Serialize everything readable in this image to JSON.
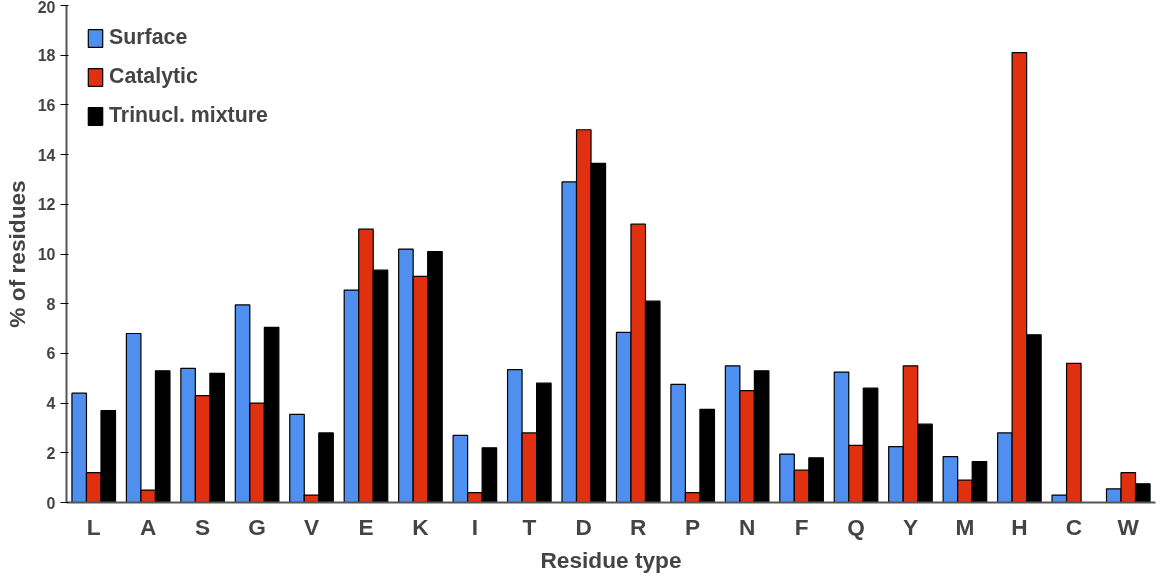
{
  "chart_data": {
    "type": "bar",
    "xlabel": "Residue type",
    "ylabel": "% of residues",
    "categories": [
      "L",
      "A",
      "S",
      "G",
      "V",
      "E",
      "K",
      "I",
      "T",
      "D",
      "R",
      "P",
      "N",
      "F",
      "Q",
      "Y",
      "M",
      "H",
      "C",
      "W"
    ],
    "series": [
      {
        "name": "Surface",
        "color": "#4f8fef",
        "values": [
          4.4,
          6.8,
          5.4,
          7.95,
          3.55,
          8.55,
          10.2,
          2.7,
          5.35,
          12.9,
          6.85,
          4.75,
          5.5,
          1.95,
          5.25,
          2.25,
          1.85,
          2.8,
          0.3,
          0.55
        ]
      },
      {
        "name": "Catalytic",
        "color": "#e03010",
        "values": [
          1.2,
          0.5,
          4.3,
          4.0,
          0.3,
          11.0,
          9.1,
          0.4,
          2.8,
          15.0,
          11.2,
          0.4,
          4.5,
          1.3,
          2.3,
          5.5,
          0.9,
          18.1,
          5.6,
          1.2
        ]
      },
      {
        "name": "Trinucl. mixture",
        "color": "#000000",
        "values": [
          3.7,
          5.3,
          5.2,
          7.05,
          2.8,
          9.35,
          10.1,
          2.2,
          4.8,
          13.65,
          8.1,
          3.75,
          5.3,
          1.8,
          4.6,
          3.15,
          1.65,
          6.75,
          null,
          0.75
        ]
      }
    ],
    "ylim": [
      0,
      20
    ],
    "yticks": [
      0,
      2,
      4,
      6,
      8,
      10,
      12,
      14,
      16,
      18,
      20
    ],
    "grid": false,
    "legend": "top left"
  }
}
